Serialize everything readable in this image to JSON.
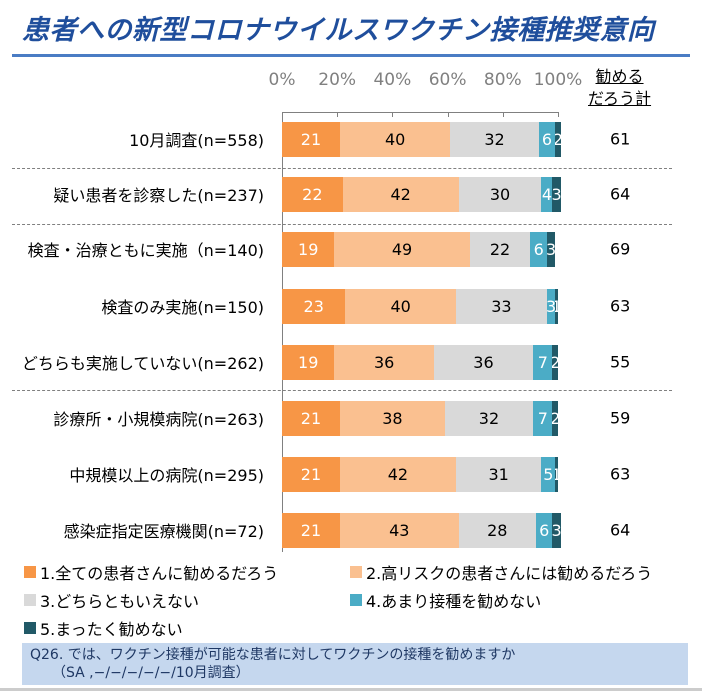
{
  "title": "患者への新型コロナウイルスワクチン接種推奨意向",
  "chart_data": {
    "type": "bar",
    "stacked": "100%",
    "orientation": "horizontal",
    "xlim": [
      0,
      100
    ],
    "ticks": [
      "0%",
      "20%",
      "40%",
      "60%",
      "80%",
      "100%"
    ],
    "total_header": "勧めるだろう計",
    "total_header_lines": [
      "勧める",
      "だろう計"
    ],
    "categories": [
      "10月調査(n=558)",
      "疑い患者を診察した(n=237)",
      "検査・治療ともに実施（n=140)",
      "検査のみ実施(n=150)",
      "どちらも実施していない(n=262)",
      "診療所・小規模病院(n=263)",
      "中規模以上の病院(n=295)",
      "感染症指定医療機関(n=72)"
    ],
    "series": [
      {
        "name": "1.全ての患者さんに勧めるだろう",
        "color": "#f79646",
        "label_color": "#ffffff",
        "values": [
          21,
          22,
          19,
          23,
          19,
          21,
          21,
          21
        ]
      },
      {
        "name": "2.高リスクの患者さんには勧めるだろう",
        "color": "#fac090",
        "label_color": "#000000",
        "values": [
          40,
          42,
          49,
          40,
          36,
          38,
          42,
          43
        ]
      },
      {
        "name": "3.どちらともいえない",
        "color": "#d9d9d9",
        "label_color": "#000000",
        "values": [
          32,
          30,
          22,
          33,
          36,
          32,
          31,
          28
        ]
      },
      {
        "name": "4.あまり接種を勧めない",
        "color": "#4bacc6",
        "label_color": "#ffffff",
        "values": [
          6,
          4,
          6,
          3,
          7,
          7,
          5,
          6
        ]
      },
      {
        "name": "5.まったく勧めない",
        "color": "#215967",
        "label_color": "#ffffff",
        "values": [
          2,
          3,
          3,
          1,
          2,
          2,
          1,
          3
        ]
      }
    ],
    "totals": [
      61,
      64,
      69,
      63,
      55,
      59,
      63,
      64
    ],
    "legend": "bottom"
  },
  "note": {
    "line1": "Q26.  では、ワクチン接種が可能な患者に対してワクチンの接種を勧めますか",
    "line2": "（SA ,−/−/−/−/−/10月調査）"
  }
}
